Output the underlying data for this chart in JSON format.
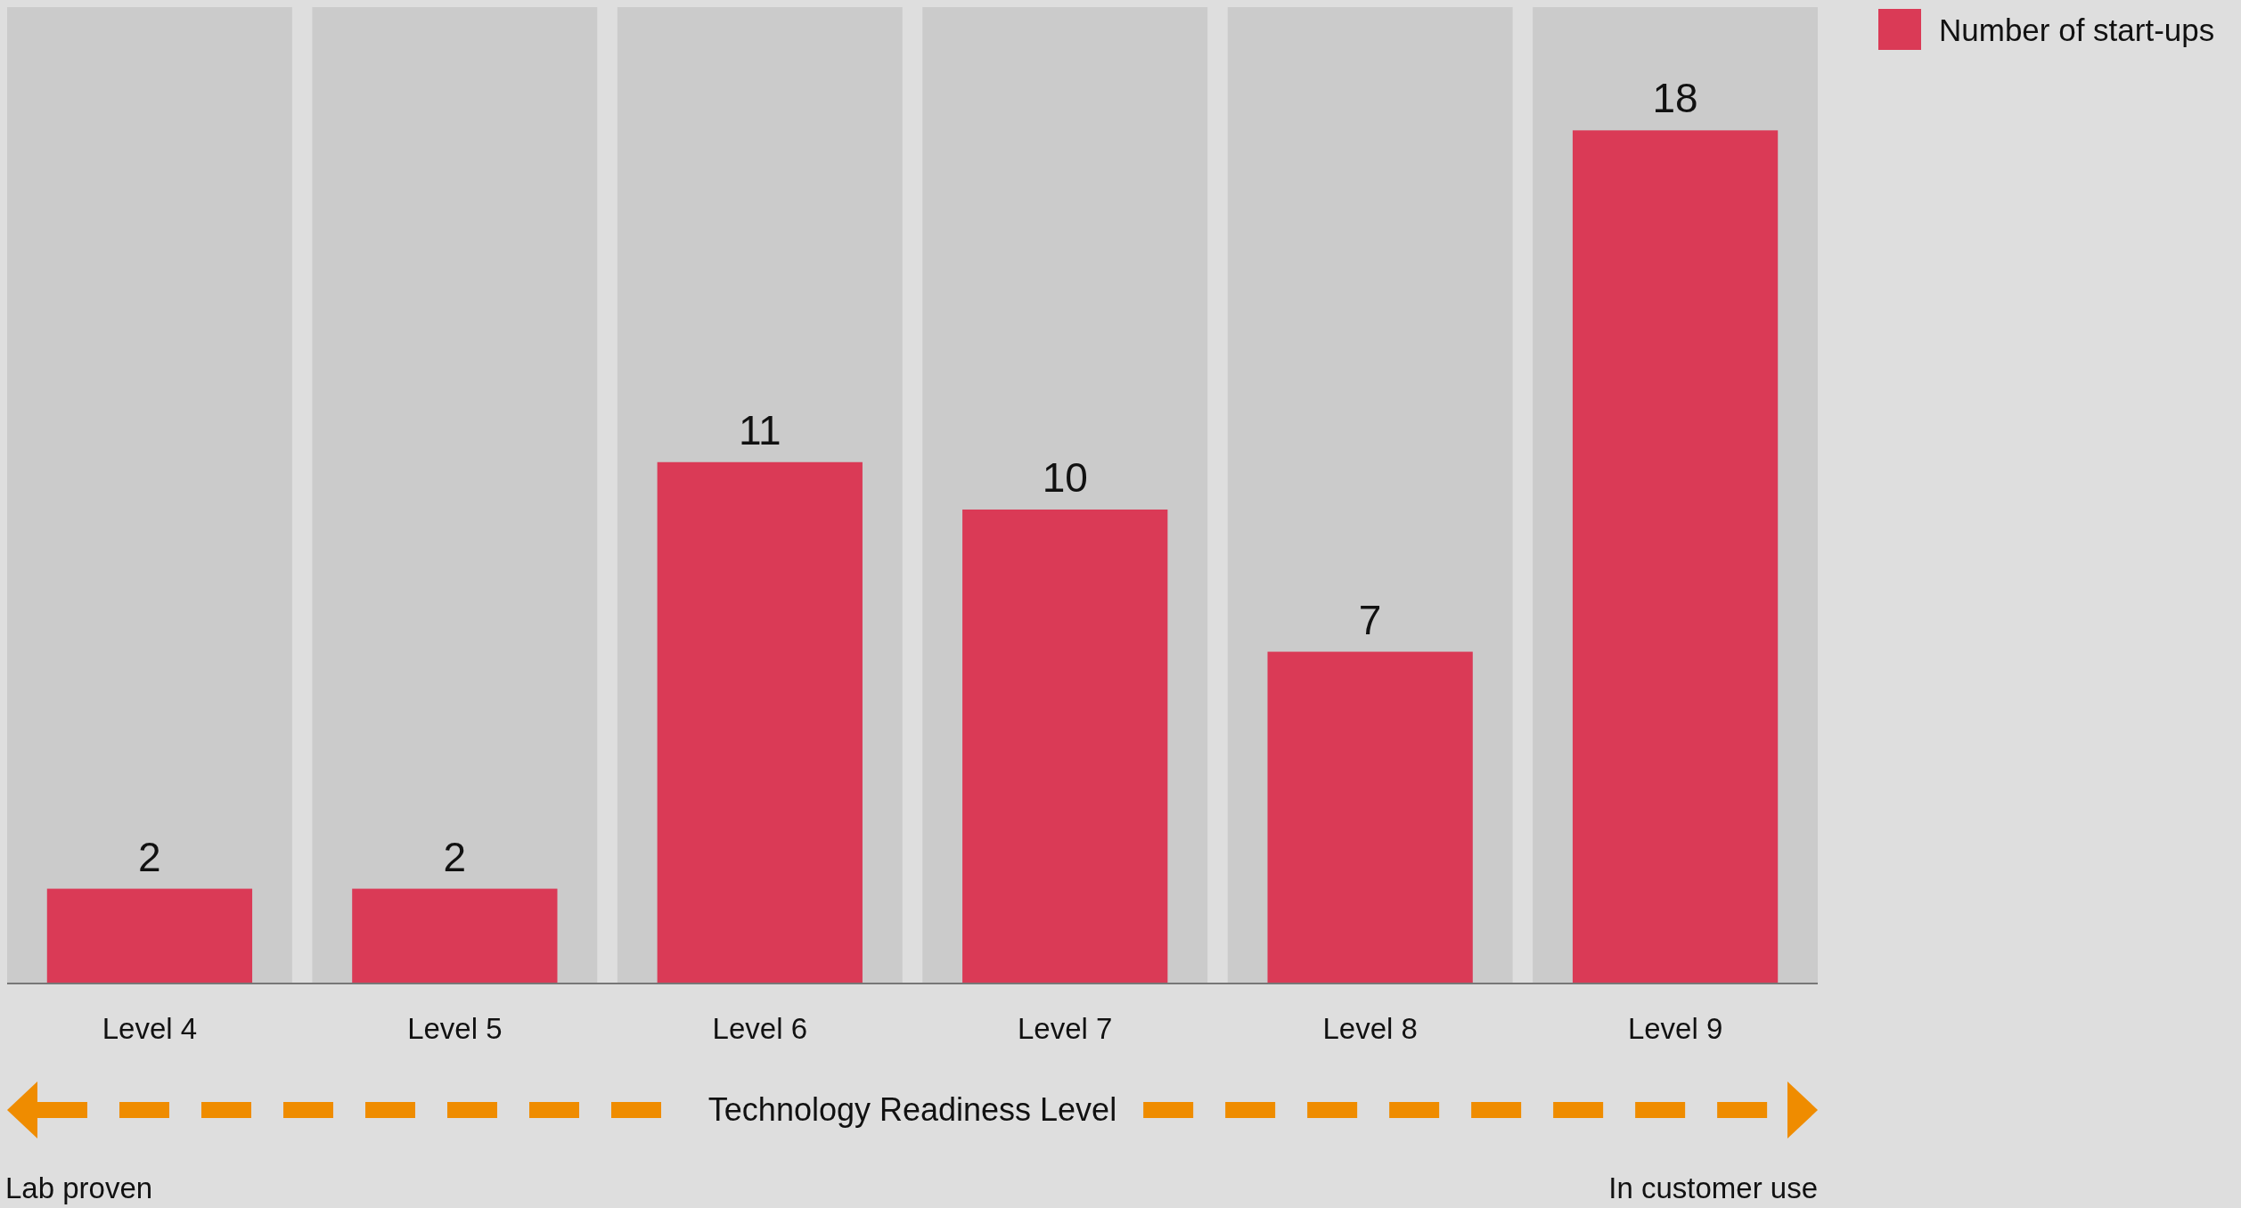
{
  "chart_data": {
    "type": "bar",
    "categories": [
      "Level 4",
      "Level 5",
      "Level 6",
      "Level 7",
      "Level 8",
      "Level 9"
    ],
    "series": [
      {
        "name": "Number of start-ups",
        "color": "#da3a56",
        "values": [
          2,
          2,
          11,
          10,
          7,
          18
        ]
      }
    ],
    "ylim": [
      0,
      20.6
    ],
    "bands": [
      {
        "axis": "x",
        "from": "Level 4",
        "to": "Level 4",
        "color": "#cbcbcb"
      },
      {
        "axis": "x",
        "from": "Level 5",
        "to": "Level 5",
        "color": "#cbcbcb"
      },
      {
        "axis": "x",
        "from": "Level 6",
        "to": "Level 6",
        "color": "#cbcbcb"
      },
      {
        "axis": "x",
        "from": "Level 7",
        "to": "Level 7",
        "color": "#cbcbcb"
      },
      {
        "axis": "x",
        "from": "Level 8",
        "to": "Level 8",
        "color": "#cbcbcb"
      },
      {
        "axis": "x",
        "from": "Level 9",
        "to": "Level 9",
        "color": "#cbcbcb"
      }
    ],
    "data_labels": true,
    "legend": "top right",
    "xlabel": "Technology Readiness Level",
    "annotations": [
      "Lab proven",
      "In customer use"
    ]
  }
}
